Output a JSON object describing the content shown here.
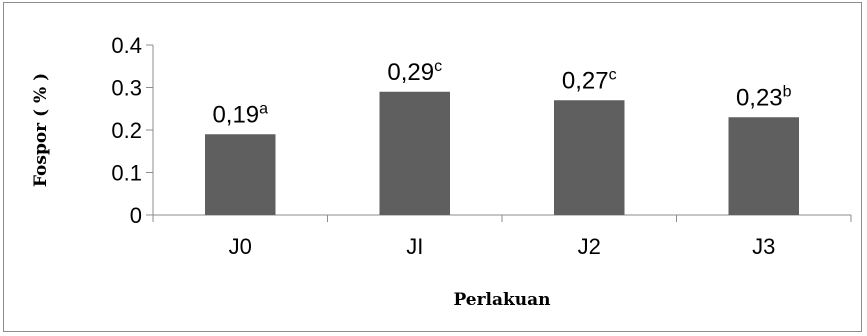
{
  "chart_data": {
    "type": "bar",
    "title": "",
    "xlabel": "Perlakuan",
    "ylabel": "Fospor ( % )",
    "categories": [
      "J0",
      "JI",
      "J2",
      "J3"
    ],
    "values": [
      0.19,
      0.29,
      0.27,
      0.23
    ],
    "value_labels": [
      "0,19",
      "0,29",
      "0,27",
      "0,23"
    ],
    "value_superscripts": [
      "a",
      "c",
      "c",
      "b"
    ],
    "yticks": [
      "0",
      "0.1",
      "0.2",
      "0.3",
      "0.4"
    ],
    "ylim": [
      0,
      0.4
    ],
    "bar_color": "#5f5f5f",
    "grid": false,
    "legend": "none"
  }
}
